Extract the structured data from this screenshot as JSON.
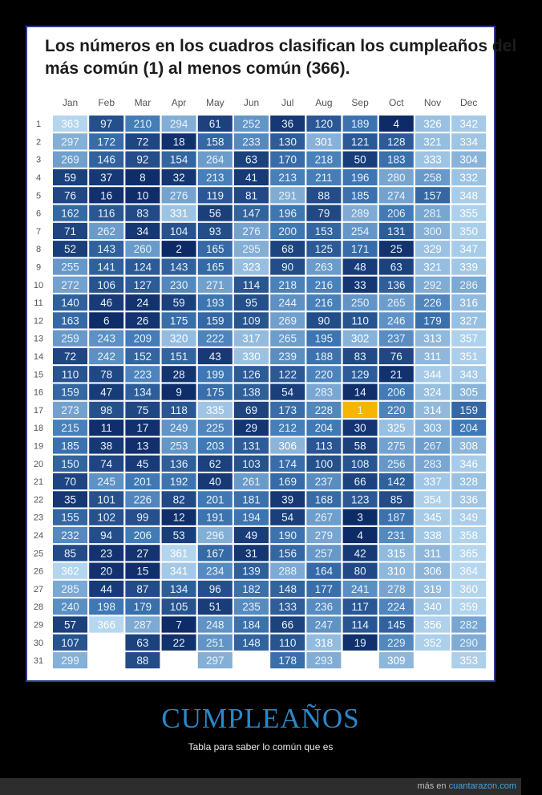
{
  "post": {
    "title": "CUMPLEAÑOS",
    "subtitle": "Tabla para saber lo común que es",
    "footer_prefix": "más en",
    "footer_link": "cuantarazon.com"
  },
  "chart_data": {
    "type": "heatmap",
    "title": "Los números en los cuadros clasifican los cumpleaños del\nmás común (1) al menos común (366).",
    "x": [
      "Jan",
      "Feb",
      "Mar",
      "Apr",
      "May",
      "Jun",
      "Jul",
      "Aug",
      "Sep",
      "Oct",
      "Nov",
      "Dec"
    ],
    "y": [
      "1",
      "2",
      "3",
      "4",
      "5",
      "6",
      "7",
      "8",
      "9",
      "10",
      "11",
      "12",
      "13",
      "14",
      "15",
      "16",
      "17",
      "18",
      "19",
      "20",
      "21",
      "22",
      "23",
      "24",
      "25",
      "26",
      "27",
      "28",
      "29",
      "30",
      "31"
    ],
    "values": [
      [
        363,
        297,
        269,
        59,
        76,
        162,
        71,
        52,
        255,
        272,
        140,
        163,
        259,
        72,
        110,
        159,
        273,
        215,
        185,
        150,
        70,
        35,
        155,
        232,
        85,
        362,
        285,
        240,
        57,
        107,
        299
      ],
      [
        97,
        172,
        146,
        37,
        16,
        116,
        262,
        143,
        141,
        106,
        46,
        6,
        243,
        242,
        78,
        47,
        98,
        11,
        38,
        74,
        245,
        101,
        102,
        94,
        23,
        20,
        44,
        198,
        366,
        null,
        null
      ],
      [
        210,
        72,
        92,
        8,
        10,
        83,
        34,
        260,
        124,
        127,
        24,
        26,
        209,
        152,
        223,
        134,
        75,
        17,
        13,
        45,
        201,
        226,
        99,
        206,
        27,
        15,
        87,
        179,
        287,
        63,
        88
      ],
      [
        294,
        18,
        154,
        32,
        276,
        331,
        104,
        2,
        143,
        230,
        59,
        175,
        320,
        151,
        28,
        9,
        118,
        249,
        253,
        136,
        192,
        82,
        12,
        53,
        361,
        341,
        134,
        105,
        7,
        22,
        null
      ],
      [
        61,
        158,
        264,
        213,
        119,
        56,
        93,
        165,
        165,
        271,
        193,
        159,
        222,
        43,
        199,
        175,
        335,
        225,
        203,
        62,
        40,
        201,
        191,
        296,
        167,
        234,
        96,
        51,
        248,
        251,
        297
      ],
      [
        252,
        233,
        63,
        41,
        81,
        147,
        276,
        295,
        323,
        114,
        95,
        109,
        317,
        330,
        126,
        138,
        69,
        29,
        131,
        103,
        261,
        181,
        194,
        49,
        31,
        139,
        182,
        235,
        184,
        148,
        null
      ],
      [
        36,
        130,
        170,
        213,
        291,
        196,
        200,
        68,
        90,
        218,
        244,
        269,
        265,
        239,
        122,
        54,
        173,
        212,
        306,
        174,
        169,
        39,
        54,
        190,
        156,
        288,
        148,
        133,
        66,
        110,
        178
      ],
      [
        120,
        301,
        218,
        211,
        88,
        79,
        153,
        125,
        263,
        216,
        216,
        90,
        195,
        188,
        220,
        283,
        228,
        204,
        113,
        100,
        237,
        168,
        267,
        279,
        257,
        164,
        177,
        236,
        247,
        318,
        293
      ],
      [
        189,
        121,
        50,
        196,
        185,
        289,
        254,
        171,
        48,
        33,
        250,
        110,
        302,
        83,
        129,
        14,
        1,
        30,
        58,
        108,
        66,
        123,
        3,
        4,
        42,
        80,
        241,
        117,
        114,
        19,
        null
      ],
      [
        4,
        128,
        183,
        280,
        274,
        206,
        131,
        25,
        63,
        136,
        265,
        246,
        237,
        76,
        21,
        206,
        220,
        325,
        275,
        256,
        142,
        85,
        187,
        231,
        315,
        310,
        278,
        224,
        145,
        229,
        309
      ],
      [
        326,
        321,
        333,
        258,
        157,
        281,
        300,
        329,
        321,
        292,
        226,
        179,
        313,
        311,
        344,
        324,
        314,
        303,
        267,
        283,
        337,
        354,
        345,
        338,
        311,
        306,
        319,
        340,
        356,
        352,
        null
      ],
      [
        342,
        334,
        304,
        332,
        348,
        355,
        350,
        347,
        339,
        286,
        316,
        327,
        357,
        351,
        343,
        305,
        159,
        204,
        308,
        346,
        328,
        336,
        349,
        358,
        365,
        364,
        360,
        359,
        282,
        290,
        353
      ]
    ],
    "color_scale": {
      "low": "#0d2a66",
      "mid": "#3f78b4",
      "high": "#b6d7ef",
      "highlight": "#f7b500",
      "text_dark": "#e8f2fb",
      "text_light": "#ffffff"
    }
  }
}
